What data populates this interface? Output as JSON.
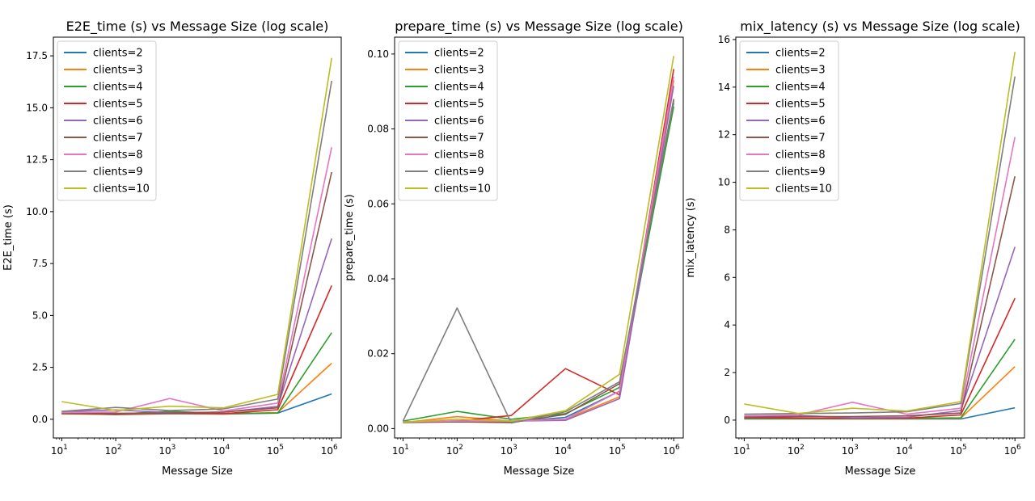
{
  "chart_data": [
    {
      "type": "line",
      "title": "E2E_time (s) vs Message Size (log scale)",
      "xlabel": "Message Size",
      "ylabel": "E2E_time (s)",
      "xscale": "log",
      "xlim": [
        7,
        1500000.0
      ],
      "ylim": [
        -0.9,
        18.4
      ],
      "yticks": [
        0.0,
        2.5,
        5.0,
        7.5,
        10.0,
        12.5,
        15.0,
        17.5
      ],
      "yticklabels": [
        "0.0",
        "2.5",
        "5.0",
        "7.5",
        "10.0",
        "12.5",
        "15.0",
        "17.5"
      ],
      "xtick_base": "10",
      "xtick_exps": [
        "1",
        "2",
        "3",
        "4",
        "5",
        "6"
      ],
      "legend_position": "upper-left",
      "x": [
        10,
        100,
        1000,
        10000,
        100000,
        1000000
      ],
      "series": [
        {
          "name": "clients=2",
          "color": "#1f77b4",
          "values": [
            0.28,
            0.22,
            0.27,
            0.25,
            0.3,
            1.22
          ]
        },
        {
          "name": "clients=3",
          "color": "#ff7f0e",
          "values": [
            0.26,
            0.24,
            0.28,
            0.26,
            0.32,
            2.7
          ]
        },
        {
          "name": "clients=4",
          "color": "#2ca02c",
          "values": [
            0.27,
            0.25,
            0.38,
            0.28,
            0.3,
            4.17
          ]
        },
        {
          "name": "clients=5",
          "color": "#d62728",
          "values": [
            0.28,
            0.26,
            0.29,
            0.27,
            0.46,
            6.44
          ]
        },
        {
          "name": "clients=6",
          "color": "#9467bd",
          "values": [
            0.37,
            0.45,
            0.32,
            0.34,
            0.62,
            8.7
          ]
        },
        {
          "name": "clients=7",
          "color": "#8c564b",
          "values": [
            0.3,
            0.29,
            0.3,
            0.35,
            0.55,
            11.9
          ]
        },
        {
          "name": "clients=8",
          "color": "#e377c2",
          "values": [
            0.32,
            0.35,
            1.0,
            0.4,
            0.78,
            13.1
          ]
        },
        {
          "name": "clients=9",
          "color": "#7f7f7f",
          "values": [
            0.38,
            0.57,
            0.42,
            0.5,
            0.97,
            16.3
          ]
        },
        {
          "name": "clients=10",
          "color": "#bcbd22",
          "values": [
            0.85,
            0.42,
            0.63,
            0.55,
            1.2,
            17.4
          ]
        }
      ]
    },
    {
      "type": "line",
      "title": "prepare_time (s) vs Message Size (log scale)",
      "xlabel": "Message Size",
      "ylabel": "prepare_time (s)",
      "xscale": "log",
      "xlim": [
        7,
        1500000.0
      ],
      "ylim": [
        -0.0025,
        0.1045
      ],
      "yticks": [
        0.0,
        0.02,
        0.04,
        0.06,
        0.08,
        0.1
      ],
      "yticklabels": [
        "0.00",
        "0.02",
        "0.04",
        "0.06",
        "0.08",
        "0.10"
      ],
      "xtick_base": "10",
      "xtick_exps": [
        "1",
        "2",
        "3",
        "4",
        "5",
        "6"
      ],
      "legend_position": "upper-left",
      "x": [
        10,
        100,
        1000,
        10000,
        100000,
        1000000
      ],
      "series": [
        {
          "name": "clients=2",
          "color": "#1f77b4",
          "values": [
            0.0018,
            0.002,
            0.0018,
            0.003,
            0.01,
            0.087
          ]
        },
        {
          "name": "clients=3",
          "color": "#ff7f0e",
          "values": [
            0.0016,
            0.0032,
            0.002,
            0.0025,
            0.0085,
            0.093
          ]
        },
        {
          "name": "clients=4",
          "color": "#2ca02c",
          "values": [
            0.002,
            0.0046,
            0.0025,
            0.004,
            0.011,
            0.086
          ]
        },
        {
          "name": "clients=5",
          "color": "#d62728",
          "values": [
            0.0017,
            0.002,
            0.0035,
            0.016,
            0.009,
            0.096
          ]
        },
        {
          "name": "clients=6",
          "color": "#9467bd",
          "values": [
            0.0018,
            0.002,
            0.002,
            0.0022,
            0.008,
            0.0915
          ]
        },
        {
          "name": "clients=7",
          "color": "#8c564b",
          "values": [
            0.0016,
            0.0018,
            0.0016,
            0.0038,
            0.012,
            0.088
          ]
        },
        {
          "name": "clients=8",
          "color": "#e377c2",
          "values": [
            0.0018,
            0.002,
            0.002,
            0.0025,
            0.01,
            0.094
          ]
        },
        {
          "name": "clients=9",
          "color": "#7f7f7f",
          "values": [
            0.002,
            0.0322,
            0.0015,
            0.0045,
            0.0125,
            0.0875
          ]
        },
        {
          "name": "clients=10",
          "color": "#bcbd22",
          "values": [
            0.0017,
            0.0025,
            0.002,
            0.0048,
            0.0145,
            0.0995
          ]
        }
      ]
    },
    {
      "type": "line",
      "title": "mix_latency (s) vs Message Size (log scale)",
      "xlabel": "Message Size",
      "ylabel": "mix_latency (s)",
      "xscale": "log",
      "xlim": [
        7,
        1500000.0
      ],
      "ylim": [
        -0.75,
        16.1
      ],
      "yticks": [
        0,
        2,
        4,
        6,
        8,
        10,
        12,
        14,
        16
      ],
      "yticklabels": [
        "0",
        "2",
        "4",
        "6",
        "8",
        "10",
        "12",
        "14",
        "16"
      ],
      "xtick_base": "10",
      "xtick_exps": [
        "1",
        "2",
        "3",
        "4",
        "5",
        "6"
      ],
      "legend_position": "upper-left",
      "x": [
        10,
        100,
        1000,
        10000,
        100000,
        1000000
      ],
      "series": [
        {
          "name": "clients=2",
          "color": "#1f77b4",
          "values": [
            0.05,
            0.05,
            0.05,
            0.05,
            0.05,
            0.52
          ]
        },
        {
          "name": "clients=3",
          "color": "#ff7f0e",
          "values": [
            0.07,
            0.06,
            0.06,
            0.06,
            0.08,
            2.25
          ]
        },
        {
          "name": "clients=4",
          "color": "#2ca02c",
          "values": [
            0.08,
            0.07,
            0.07,
            0.07,
            0.1,
            3.4
          ]
        },
        {
          "name": "clients=5",
          "color": "#d62728",
          "values": [
            0.1,
            0.09,
            0.08,
            0.08,
            0.22,
            5.12
          ]
        },
        {
          "name": "clients=6",
          "color": "#9467bd",
          "values": [
            0.15,
            0.2,
            0.1,
            0.12,
            0.4,
            7.28
          ]
        },
        {
          "name": "clients=7",
          "color": "#8c564b",
          "values": [
            0.12,
            0.15,
            0.15,
            0.18,
            0.3,
            10.25
          ]
        },
        {
          "name": "clients=8",
          "color": "#e377c2",
          "values": [
            0.18,
            0.22,
            0.75,
            0.25,
            0.5,
            11.9
          ]
        },
        {
          "name": "clients=9",
          "color": "#7f7f7f",
          "values": [
            0.25,
            0.28,
            0.3,
            0.35,
            0.7,
            14.45
          ]
        },
        {
          "name": "clients=10",
          "color": "#bcbd22",
          "values": [
            0.68,
            0.28,
            0.5,
            0.38,
            0.78,
            15.48
          ]
        }
      ]
    }
  ]
}
